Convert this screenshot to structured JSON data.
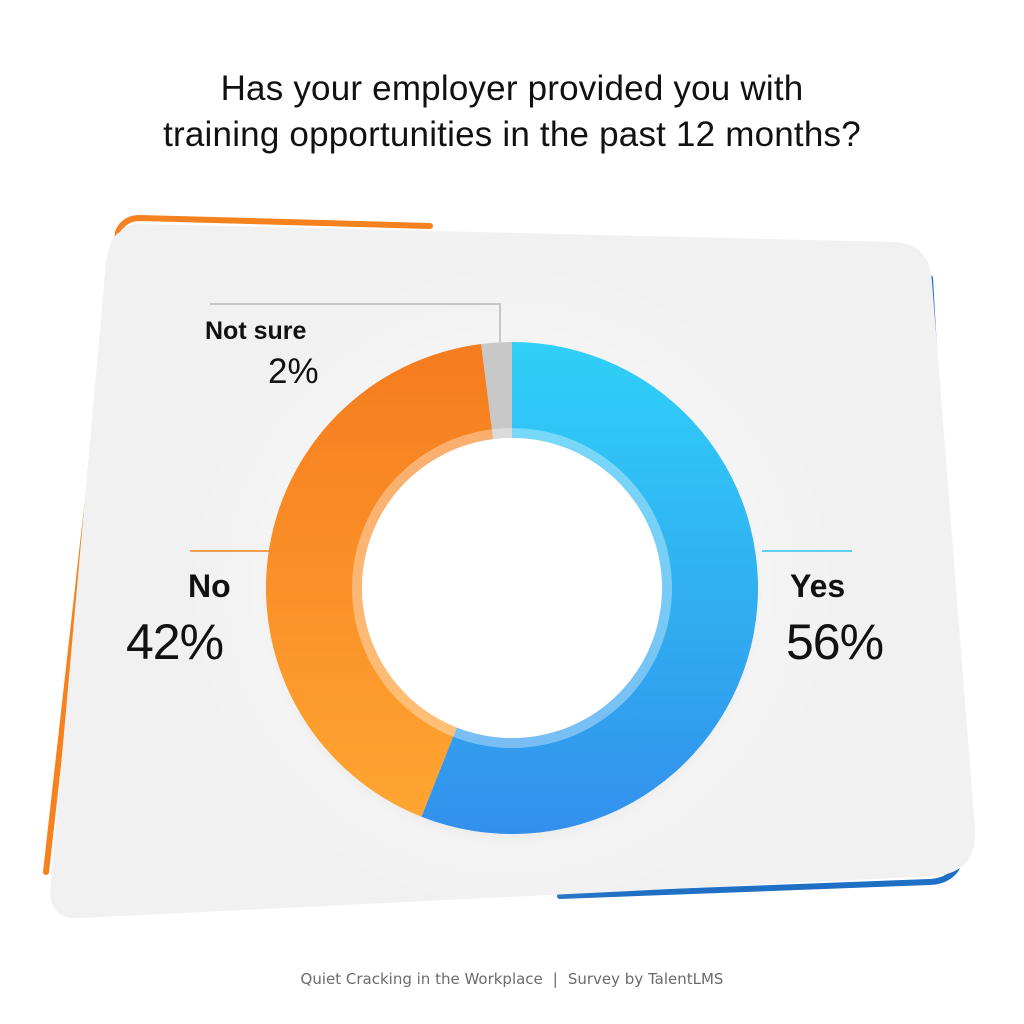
{
  "title_lines": [
    "Has your employer provided you with",
    "training opportunities in the past 12 months?"
  ],
  "footer": {
    "source": "Quiet Cracking in the Workplace",
    "separator": "|",
    "credit": "Survey by TalentLMS"
  },
  "colors": {
    "yes_light": "#2fd0f7",
    "yes_dark": "#3290ec",
    "no_light": "#ffa531",
    "no_dark": "#f57c1f",
    "not_sure": "#c8c8c8",
    "card": "#f1f1f1",
    "accent_orange": "#f5821f",
    "accent_blue": "#1f6fc4"
  },
  "chart_data": {
    "type": "pie",
    "variant": "donut",
    "title": "Has your employer provided you with training opportunities in the past 12 months?",
    "slices": [
      {
        "label": "Yes",
        "value": 56,
        "display": "56%"
      },
      {
        "label": "No",
        "value": 42,
        "display": "42%"
      },
      {
        "label": "Not sure",
        "value": 2,
        "display": "2%"
      }
    ],
    "start": "12 o'clock",
    "direction": "clockwise"
  }
}
